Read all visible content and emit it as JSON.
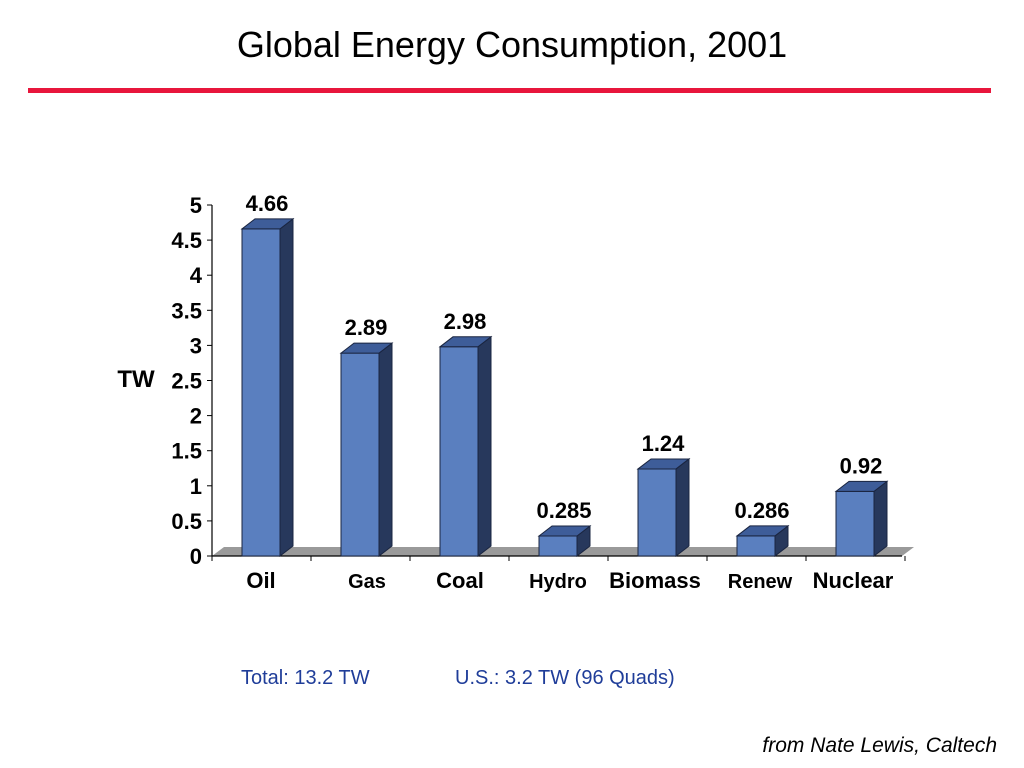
{
  "slide": {
    "title": "Global Energy Consumption, 2001",
    "total_note": "Total: 13.2 TW",
    "us_note": "U.S.: 3.2 TW (96 Quads)",
    "source_note": "from Nate Lewis, Caltech"
  },
  "colors": {
    "rule": "#e8163c",
    "note_text": "#1f3d99",
    "bar_front": "#5a7fbf",
    "bar_side": "#27385c",
    "bar_top": "#3e5d99",
    "floor": "#9a9a9a"
  },
  "chart_data": {
    "type": "bar",
    "title": "",
    "xlabel": "",
    "ylabel": "TW",
    "ylim": [
      0,
      5
    ],
    "yticks": [
      "0",
      "0.5",
      "1",
      "1.5",
      "2",
      "2.5",
      "3",
      "3.5",
      "4",
      "4.5",
      "5"
    ],
    "categories": [
      "Oil",
      "Gas",
      "Coal",
      "Hydro",
      "Biomass",
      "Renew",
      "Nuclear"
    ],
    "values": [
      4.66,
      2.89,
      2.98,
      0.285,
      1.24,
      0.286,
      0.92
    ],
    "value_labels": [
      "4.66",
      "2.89",
      "2.98",
      "0.285",
      "1.24",
      "0.286",
      "0.92"
    ],
    "grid": false,
    "legend": "none"
  }
}
